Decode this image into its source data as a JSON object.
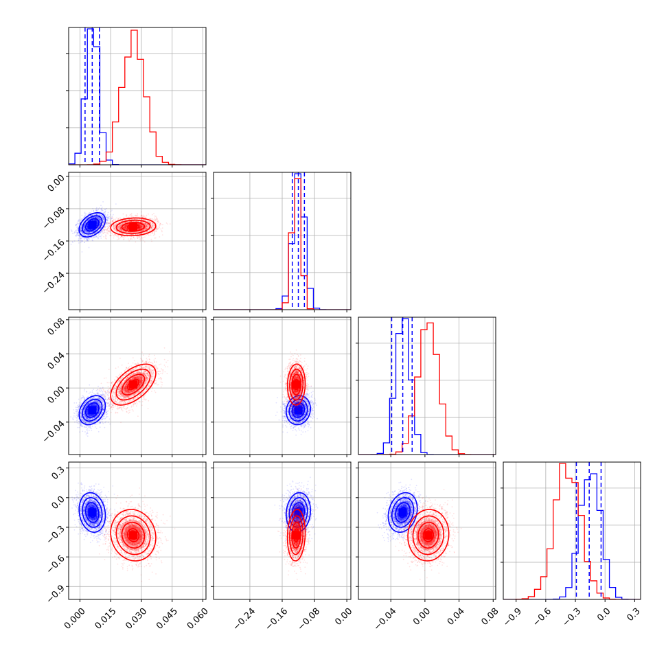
{
  "chart_data": {
    "type": "corner",
    "n_params": 4,
    "series": [
      {
        "color": "#0000ff",
        "means": [
          0.006,
          -0.12,
          -0.026,
          -0.15
        ],
        "sigmas": [
          0.0032,
          0.015,
          0.0085,
          0.1
        ],
        "correlations": [
          [
            0,
            1,
            0.4
          ],
          [
            0,
            2,
            0.3
          ],
          [
            0,
            3,
            -0.15
          ],
          [
            1,
            2,
            0.1
          ],
          [
            1,
            3,
            0.1
          ],
          [
            2,
            3,
            0.2
          ]
        ],
        "quantiles": [
          [
            0.0025,
            0.006,
            0.0095
          ],
          [
            -0.135,
            -0.12,
            -0.105
          ],
          [
            -0.039,
            -0.026,
            -0.015
          ],
          [
            -0.29,
            -0.16,
            -0.04
          ]
        ]
      },
      {
        "color": "#ff0000",
        "means": [
          0.026,
          -0.125,
          0.004,
          -0.38
        ],
        "sigmas": [
          0.0055,
          0.011,
          0.012,
          0.13
        ],
        "correlations": [
          [
            0,
            1,
            0.1
          ],
          [
            0,
            2,
            0.55
          ],
          [
            0,
            3,
            -0.1
          ],
          [
            1,
            2,
            0.05
          ],
          [
            1,
            3,
            0.1
          ],
          [
            2,
            3,
            0.05
          ]
        ],
        "quantiles": []
      }
    ],
    "ranges": [
      [
        -0.0055,
        0.0615
      ],
      [
        -0.33,
        0.01
      ],
      [
        -0.078,
        0.083
      ],
      [
        -1.03,
        0.36
      ]
    ],
    "ticks": [
      [
        "0.000",
        "0.015",
        "0.030",
        "0.045",
        "0.060"
      ],
      [
        "−0.24",
        "−0.16",
        "−0.08",
        "0.00"
      ],
      [
        "−0.04",
        "0.00",
        "0.04",
        "0.08"
      ],
      [
        "−0.9",
        "−0.6",
        "−0.3",
        "0.0",
        "0.3"
      ]
    ],
    "tick_values": [
      [
        0.0,
        0.015,
        0.03,
        0.045,
        0.06
      ],
      [
        -0.24,
        -0.16,
        -0.08,
        0.0
      ],
      [
        -0.04,
        0.0,
        0.04,
        0.08
      ],
      [
        -0.9,
        -0.6,
        -0.3,
        0.0,
        0.3
      ]
    ],
    "diag_hist_yticks": 3,
    "grid": true,
    "contour_levels_sigma": [
      0.5,
      1.0,
      1.5,
      2.0
    ]
  }
}
